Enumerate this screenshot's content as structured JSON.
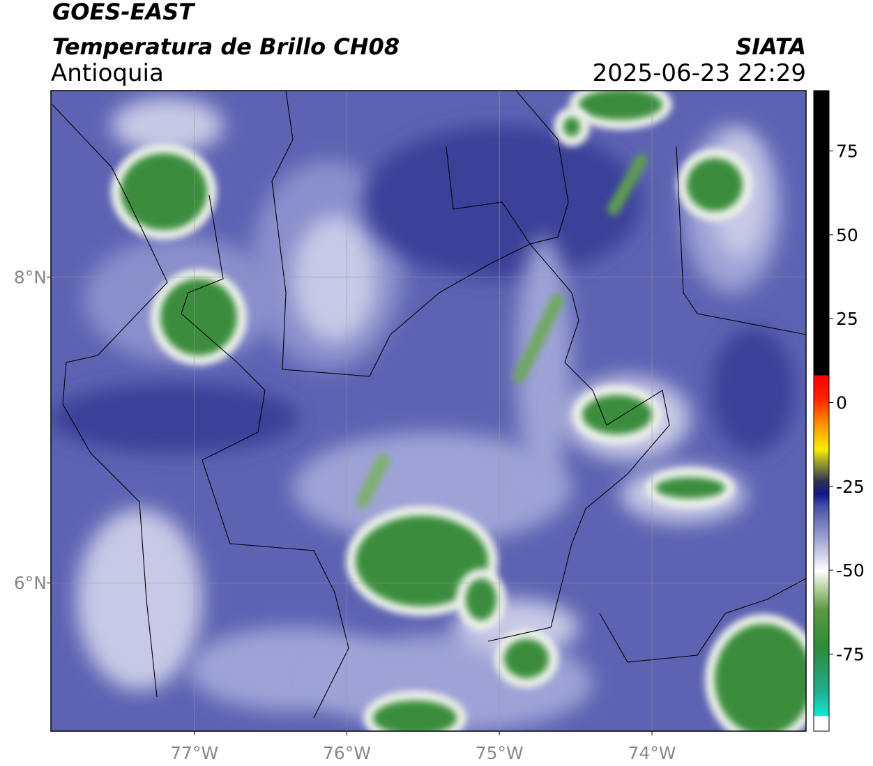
{
  "header": {
    "satellite": "GOES-EAST",
    "product": "Temperatura de Brillo CH08",
    "region": "Antioquia",
    "agency": "SIATA",
    "datetime": "2025-06-23 22:29"
  },
  "map": {
    "xlim": [
      -77.94,
      -72.99
    ],
    "ylim": [
      5.03,
      9.22
    ],
    "lon_ticks": [
      {
        "value": -77,
        "label": "77°W"
      },
      {
        "value": -76,
        "label": "76°W"
      },
      {
        "value": -75,
        "label": "75°W"
      },
      {
        "value": -74,
        "label": "74°W"
      }
    ],
    "lat_ticks": [
      {
        "value": 8,
        "label": "8°N"
      },
      {
        "value": 6,
        "label": "6°N"
      }
    ]
  },
  "colorbar": {
    "lim": [
      -98,
      93
    ],
    "ticks": [
      75,
      50,
      25,
      0,
      -25,
      -50,
      -75
    ]
  }
}
